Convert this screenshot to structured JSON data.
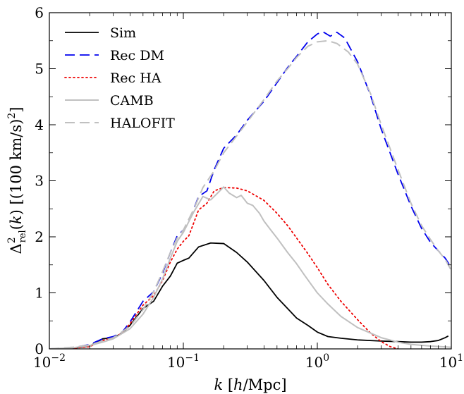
{
  "chart_data": {
    "type": "line",
    "xscale": "log",
    "xlim": [
      0.01,
      10
    ],
    "ylim": [
      0,
      6
    ],
    "xlabel": "k [h/Mpc]",
    "ylabel": "Δ²rel(k) [(100 km/s)²]",
    "xticks": [
      {
        "value": 0.01,
        "base": "10",
        "exp": "−2"
      },
      {
        "value": 0.1,
        "base": "10",
        "exp": "−1"
      },
      {
        "value": 1,
        "base": "10",
        "exp": "0"
      },
      {
        "value": 10,
        "base": "10",
        "exp": "1"
      }
    ],
    "yticks": [
      {
        "value": 0,
        "label": "0"
      },
      {
        "value": 1,
        "label": "1"
      },
      {
        "value": 2,
        "label": "2"
      },
      {
        "value": 3,
        "label": "3"
      },
      {
        "value": 4,
        "label": "4"
      },
      {
        "value": 5,
        "label": "5"
      },
      {
        "value": 6,
        "label": "6"
      }
    ],
    "grid": false,
    "legend_position": "top-left",
    "series": [
      {
        "name": "Sim",
        "color": "#000000",
        "dash": "solid",
        "points": [
          [
            0.01,
            0.0
          ],
          [
            0.015,
            0.01
          ],
          [
            0.02,
            0.05
          ],
          [
            0.025,
            0.18
          ],
          [
            0.03,
            0.2
          ],
          [
            0.035,
            0.28
          ],
          [
            0.04,
            0.42
          ],
          [
            0.05,
            0.72
          ],
          [
            0.06,
            0.85
          ],
          [
            0.07,
            1.12
          ],
          [
            0.08,
            1.3
          ],
          [
            0.09,
            1.53
          ],
          [
            0.1,
            1.58
          ],
          [
            0.11,
            1.62
          ],
          [
            0.13,
            1.82
          ],
          [
            0.16,
            1.89
          ],
          [
            0.2,
            1.88
          ],
          [
            0.25,
            1.72
          ],
          [
            0.3,
            1.55
          ],
          [
            0.4,
            1.22
          ],
          [
            0.5,
            0.92
          ],
          [
            0.6,
            0.72
          ],
          [
            0.7,
            0.55
          ],
          [
            0.85,
            0.42
          ],
          [
            1.0,
            0.3
          ],
          [
            1.2,
            0.22
          ],
          [
            1.5,
            0.19
          ],
          [
            2.0,
            0.16
          ],
          [
            3.0,
            0.14
          ],
          [
            4.0,
            0.13
          ],
          [
            5.0,
            0.12
          ],
          [
            6.0,
            0.12
          ],
          [
            7.0,
            0.13
          ],
          [
            8.0,
            0.15
          ],
          [
            9.0,
            0.2
          ],
          [
            9.5,
            0.23
          ]
        ]
      },
      {
        "name": "Rec DM",
        "color": "#0000ee",
        "dash": "dashed",
        "points": [
          [
            0.01,
            0.0
          ],
          [
            0.015,
            0.02
          ],
          [
            0.02,
            0.08
          ],
          [
            0.025,
            0.18
          ],
          [
            0.03,
            0.22
          ],
          [
            0.035,
            0.3
          ],
          [
            0.04,
            0.48
          ],
          [
            0.05,
            0.85
          ],
          [
            0.06,
            1.02
          ],
          [
            0.07,
            1.35
          ],
          [
            0.08,
            1.72
          ],
          [
            0.09,
            2.02
          ],
          [
            0.1,
            2.12
          ],
          [
            0.11,
            2.28
          ],
          [
            0.13,
            2.72
          ],
          [
            0.15,
            2.82
          ],
          [
            0.17,
            3.2
          ],
          [
            0.2,
            3.58
          ],
          [
            0.25,
            3.82
          ],
          [
            0.3,
            4.08
          ],
          [
            0.4,
            4.42
          ],
          [
            0.5,
            4.75
          ],
          [
            0.6,
            5.02
          ],
          [
            0.7,
            5.22
          ],
          [
            0.85,
            5.48
          ],
          [
            1.0,
            5.62
          ],
          [
            1.1,
            5.66
          ],
          [
            1.25,
            5.58
          ],
          [
            1.4,
            5.65
          ],
          [
            1.6,
            5.55
          ],
          [
            2.0,
            5.12
          ],
          [
            2.5,
            4.52
          ],
          [
            3.0,
            3.92
          ],
          [
            4.0,
            3.12
          ],
          [
            5.0,
            2.55
          ],
          [
            6.0,
            2.15
          ],
          [
            7.0,
            1.9
          ],
          [
            8.0,
            1.75
          ],
          [
            9.0,
            1.62
          ],
          [
            10.0,
            1.45
          ]
        ]
      },
      {
        "name": "Rec HA",
        "color": "#ee0000",
        "dash": "dotted",
        "points": [
          [
            0.01,
            0.0
          ],
          [
            0.015,
            0.01
          ],
          [
            0.02,
            0.04
          ],
          [
            0.025,
            0.15
          ],
          [
            0.03,
            0.2
          ],
          [
            0.035,
            0.28
          ],
          [
            0.04,
            0.45
          ],
          [
            0.05,
            0.78
          ],
          [
            0.06,
            0.95
          ],
          [
            0.07,
            1.22
          ],
          [
            0.08,
            1.55
          ],
          [
            0.09,
            1.78
          ],
          [
            0.1,
            1.92
          ],
          [
            0.11,
            2.02
          ],
          [
            0.13,
            2.48
          ],
          [
            0.15,
            2.6
          ],
          [
            0.17,
            2.82
          ],
          [
            0.2,
            2.88
          ],
          [
            0.25,
            2.87
          ],
          [
            0.3,
            2.82
          ],
          [
            0.4,
            2.65
          ],
          [
            0.5,
            2.42
          ],
          [
            0.6,
            2.2
          ],
          [
            0.7,
            1.98
          ],
          [
            0.85,
            1.7
          ],
          [
            1.0,
            1.45
          ],
          [
            1.2,
            1.15
          ],
          [
            1.5,
            0.85
          ],
          [
            2.0,
            0.52
          ],
          [
            2.5,
            0.28
          ],
          [
            3.0,
            0.13
          ],
          [
            3.5,
            0.04
          ],
          [
            4.0,
            0.0
          ]
        ]
      },
      {
        "name": "CAMB",
        "color": "#c0c0c0",
        "dash": "solid",
        "points": [
          [
            0.01,
            0.0
          ],
          [
            0.015,
            0.02
          ],
          [
            0.02,
            0.06
          ],
          [
            0.025,
            0.12
          ],
          [
            0.03,
            0.18
          ],
          [
            0.04,
            0.36
          ],
          [
            0.05,
            0.62
          ],
          [
            0.06,
            0.92
          ],
          [
            0.07,
            1.25
          ],
          [
            0.08,
            1.62
          ],
          [
            0.09,
            1.92
          ],
          [
            0.1,
            2.08
          ],
          [
            0.12,
            2.45
          ],
          [
            0.14,
            2.72
          ],
          [
            0.16,
            2.66
          ],
          [
            0.18,
            2.78
          ],
          [
            0.2,
            2.89
          ],
          [
            0.22,
            2.78
          ],
          [
            0.25,
            2.7
          ],
          [
            0.27,
            2.74
          ],
          [
            0.3,
            2.6
          ],
          [
            0.33,
            2.56
          ],
          [
            0.37,
            2.42
          ],
          [
            0.4,
            2.28
          ],
          [
            0.45,
            2.12
          ],
          [
            0.5,
            1.98
          ],
          [
            0.6,
            1.72
          ],
          [
            0.7,
            1.52
          ],
          [
            0.8,
            1.32
          ],
          [
            0.9,
            1.15
          ],
          [
            1.0,
            1.0
          ],
          [
            1.2,
            0.8
          ],
          [
            1.5,
            0.58
          ],
          [
            2.0,
            0.38
          ],
          [
            3.0,
            0.2
          ],
          [
            4.0,
            0.12
          ],
          [
            5.0,
            0.08
          ],
          [
            7.0,
            0.05
          ],
          [
            10.0,
            0.03
          ]
        ]
      },
      {
        "name": "HALOFIT",
        "color": "#c0c0c0",
        "dash": "dashed",
        "points": [
          [
            0.01,
            0.0
          ],
          [
            0.015,
            0.03
          ],
          [
            0.02,
            0.07
          ],
          [
            0.03,
            0.2
          ],
          [
            0.04,
            0.4
          ],
          [
            0.05,
            0.7
          ],
          [
            0.06,
            1.02
          ],
          [
            0.07,
            1.38
          ],
          [
            0.08,
            1.72
          ],
          [
            0.09,
            1.98
          ],
          [
            0.1,
            2.12
          ],
          [
            0.12,
            2.5
          ],
          [
            0.14,
            2.88
          ],
          [
            0.17,
            3.18
          ],
          [
            0.2,
            3.5
          ],
          [
            0.25,
            3.8
          ],
          [
            0.3,
            4.05
          ],
          [
            0.4,
            4.45
          ],
          [
            0.5,
            4.78
          ],
          [
            0.6,
            5.0
          ],
          [
            0.7,
            5.2
          ],
          [
            0.85,
            5.4
          ],
          [
            1.0,
            5.48
          ],
          [
            1.2,
            5.5
          ],
          [
            1.4,
            5.45
          ],
          [
            1.7,
            5.3
          ],
          [
            2.0,
            5.08
          ],
          [
            2.5,
            4.55
          ],
          [
            3.0,
            4.0
          ],
          [
            4.0,
            3.2
          ],
          [
            5.0,
            2.6
          ],
          [
            6.0,
            2.2
          ],
          [
            7.0,
            1.95
          ],
          [
            8.0,
            1.75
          ],
          [
            9.0,
            1.6
          ],
          [
            10.0,
            1.4
          ]
        ]
      }
    ]
  }
}
